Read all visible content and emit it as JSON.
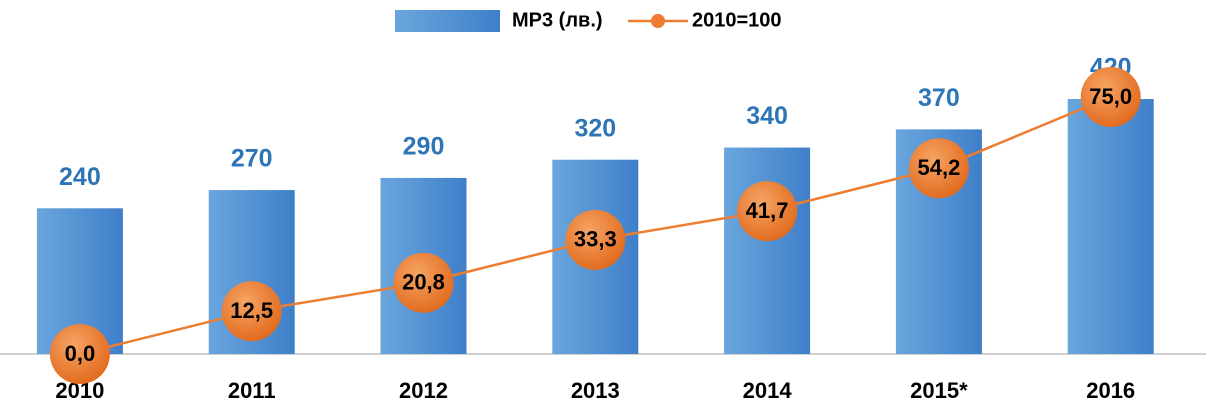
{
  "chart_data": {
    "type": "bar_line",
    "categories": [
      "2010",
      "2011",
      "2012",
      "2013",
      "2014",
      "2015*",
      "2016"
    ],
    "series": [
      {
        "name": "МР3 (лв.)",
        "type": "bar",
        "color": "#5b9bd5",
        "values": [
          240,
          270,
          290,
          320,
          340,
          370,
          420
        ]
      },
      {
        "name": "2010=100",
        "type": "line",
        "color": "#ed7d31",
        "axis": "y2",
        "values": [
          0,
          12.5,
          20.8,
          33.3,
          41.7,
          54.2,
          75
        ],
        "value_labels": [
          "0,0",
          "12,5",
          "20,8",
          "33,3",
          "41,7",
          "54,2",
          "75,0"
        ]
      }
    ]
  }
}
